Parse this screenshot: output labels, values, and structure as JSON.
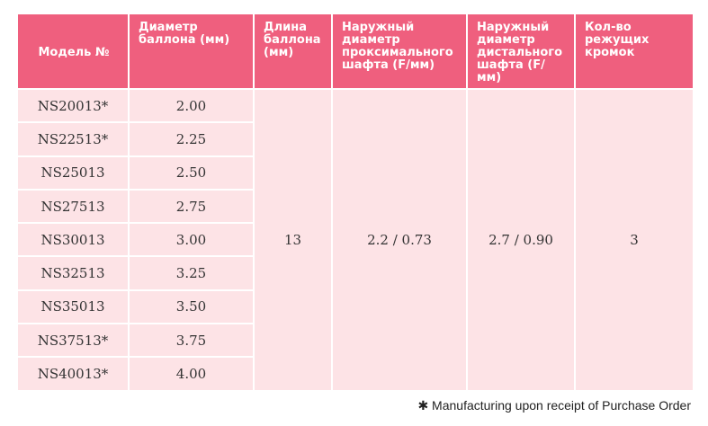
{
  "table": {
    "header": [
      "Модель №",
      "Диаметр баллона (мм)",
      "Длина баллона (мм)",
      "Наружный диаметр проксимального шафта (F/мм)",
      "Наружный диаметр дистального шафта (F/мм)",
      "Кол-во режущих кромок"
    ],
    "rows": [
      [
        "NS20013*",
        "2.00"
      ],
      [
        "NS22513*",
        "2.25"
      ],
      [
        "NS25013",
        "2.50"
      ],
      [
        "NS27513",
        "2.75"
      ],
      [
        "NS30013",
        "3.00"
      ],
      [
        "NS32513",
        "3.25"
      ],
      [
        "NS35013",
        "3.50"
      ],
      [
        "NS37513*",
        "3.75"
      ],
      [
        "NS40013*",
        "4.00"
      ]
    ],
    "shared": [
      "13",
      "2.2 / 0.73",
      "2.7 / 0.90",
      "3"
    ]
  },
  "footnote": "✱ Manufacturing upon receipt of Purchase Order"
}
